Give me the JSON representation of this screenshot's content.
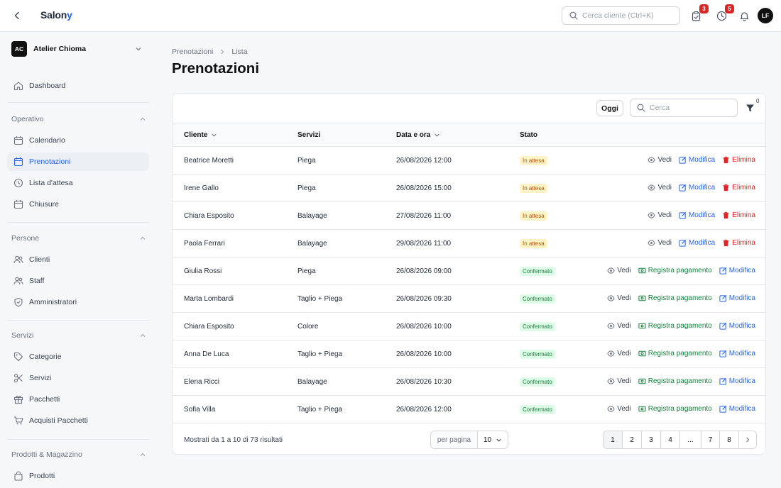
{
  "app": {
    "brand_main": "Salon",
    "brand_accent": "y"
  },
  "topbar": {
    "search_placeholder": "Cerca cliente (Ctrl+K)",
    "tasks_badge": "3",
    "timer_badge": "5",
    "user_initials": "LF"
  },
  "sidebar": {
    "org_initials": "AC",
    "org_name": "Atelier Chioma",
    "dashboard": "Dashboard",
    "sections": {
      "operativo": "Operativo",
      "persone": "Persone",
      "servizi": "Servizi",
      "prodotti": "Prodotti & Magazzino"
    },
    "items": {
      "calendario": "Calendario",
      "prenotazioni": "Prenotazioni",
      "lista_attesa": "Lista d'attesa",
      "chiusure": "Chiusure",
      "clienti": "Clienti",
      "staff": "Staff",
      "amministratori": "Amministratori",
      "categorie": "Categorie",
      "servizi": "Servizi",
      "pacchetti": "Pacchetti",
      "acquisti_pacchetti": "Acquisti Pacchetti",
      "prodotti": "Prodotti"
    }
  },
  "breadcrumb": {
    "parent": "Prenotazioni",
    "current": "Lista"
  },
  "page": {
    "title": "Prenotazioni"
  },
  "toolbar": {
    "today_label": "Oggi",
    "search_placeholder": "Cerca",
    "filter_count": "0"
  },
  "table": {
    "headers": {
      "cliente": "Cliente",
      "servizi": "Servizi",
      "data": "Data e ora",
      "stato": "Stato"
    },
    "action_labels": {
      "view": "Vedi",
      "edit": "Modifica",
      "delete": "Elimina",
      "pay": "Registra pagamento"
    },
    "rows": [
      {
        "cliente": "Beatrice Moretti",
        "servizi": "Piega",
        "data": "26/08/2026 12:00",
        "stato": "In attesa"
      },
      {
        "cliente": "Irene Gallo",
        "servizi": "Piega",
        "data": "26/08/2026 15:00",
        "stato": "In attesa"
      },
      {
        "cliente": "Chiara Esposito",
        "servizi": "Balayage",
        "data": "27/08/2026 11:00",
        "stato": "In attesa"
      },
      {
        "cliente": "Paola Ferrari",
        "servizi": "Balayage",
        "data": "29/08/2026 11:00",
        "stato": "In attesa"
      },
      {
        "cliente": "Giulia Rossi",
        "servizi": "Piega",
        "data": "26/08/2026 09:00",
        "stato": "Confermato"
      },
      {
        "cliente": "Marta Lombardi",
        "servizi": "Taglio + Piega",
        "data": "26/08/2026 09:30",
        "stato": "Confermato"
      },
      {
        "cliente": "Chiara Esposito",
        "servizi": "Colore",
        "data": "26/08/2026 10:00",
        "stato": "Confermato"
      },
      {
        "cliente": "Anna De Luca",
        "servizi": "Taglio + Piega",
        "data": "26/08/2026 10:00",
        "stato": "Confermato"
      },
      {
        "cliente": "Elena Ricci",
        "servizi": "Balayage",
        "data": "26/08/2026 10:30",
        "stato": "Confermato"
      },
      {
        "cliente": "Sofia Villa",
        "servizi": "Taglio + Piega",
        "data": "26/08/2026 12:00",
        "stato": "Confermato"
      }
    ]
  },
  "footer": {
    "summary": "Mostrati da 1 a 10 di 73 risultati",
    "per_page_label": "per pagina",
    "per_page_value": "10",
    "pages": [
      "1",
      "2",
      "3",
      "4",
      "...",
      "7",
      "8"
    ]
  }
}
